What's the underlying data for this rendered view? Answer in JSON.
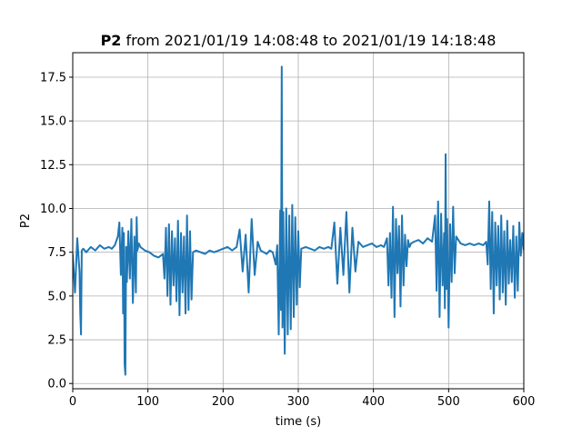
{
  "chart_data": {
    "type": "line",
    "title_bold": "P2",
    "title_rest": " from 2021/01/19 14:08:48 to 2021/01/19 14:18:48",
    "xlabel": "time (s)",
    "ylabel": "P2",
    "xlim": [
      0,
      600
    ],
    "ylim": [
      -0.3,
      18.9
    ],
    "grid": true,
    "x_ticks": [
      0,
      100,
      200,
      300,
      400,
      500,
      600
    ],
    "y_ticks": [
      0.0,
      2.5,
      5.0,
      7.5,
      10.0,
      12.5,
      15.0,
      17.5
    ],
    "x_tick_labels": [
      "0",
      "100",
      "200",
      "300",
      "400",
      "500",
      "600"
    ],
    "y_tick_labels": [
      "0.0",
      "2.5",
      "5.0",
      "7.5",
      "10.0",
      "12.5",
      "15.0",
      "17.5"
    ],
    "color": "#1f77b4",
    "series": [
      {
        "x": [
          0,
          3,
          6,
          9,
          10,
          11,
          12,
          14,
          18,
          24,
          30,
          36,
          42,
          48,
          52,
          56,
          60,
          62,
          64,
          66,
          67,
          68,
          69,
          70,
          71,
          72,
          74,
          76,
          78,
          80,
          82,
          84,
          85,
          86,
          88,
          90,
          96,
          102,
          108,
          114,
          120,
          122,
          124,
          126,
          128,
          130,
          132,
          134,
          136,
          138,
          140,
          142,
          144,
          146,
          148,
          150,
          152,
          154,
          156,
          158,
          160,
          164,
          170,
          176,
          182,
          188,
          194,
          200,
          206,
          212,
          218,
          222,
          226,
          230,
          234,
          238,
          242,
          246,
          250,
          254,
          258,
          262,
          266,
          270,
          272,
          274,
          276,
          277,
          278,
          279,
          280,
          282,
          284,
          286,
          288,
          290,
          292,
          294,
          296,
          298,
          300,
          302,
          304,
          310,
          316,
          322,
          328,
          334,
          340,
          344,
          348,
          352,
          356,
          360,
          364,
          368,
          372,
          376,
          380,
          386,
          392,
          398,
          404,
          410,
          414,
          418,
          420,
          422,
          424,
          426,
          428,
          430,
          432,
          434,
          436,
          438,
          440,
          442,
          444,
          446,
          448,
          450,
          454,
          460,
          466,
          472,
          478,
          482,
          484,
          486,
          488,
          490,
          492,
          494,
          495,
          496,
          497,
          498,
          500,
          502,
          504,
          506,
          508,
          510,
          516,
          522,
          528,
          534,
          540,
          546,
          550,
          552,
          554,
          556,
          558,
          560,
          562,
          564,
          566,
          568,
          570,
          572,
          574,
          576,
          578,
          580,
          582,
          584,
          586,
          588,
          590,
          592,
          594,
          596,
          598,
          600
        ],
        "y": [
          7.4,
          5.2,
          8.3,
          6.4,
          4.0,
          2.8,
          7.6,
          7.7,
          7.5,
          7.8,
          7.6,
          7.9,
          7.7,
          7.8,
          7.7,
          7.9,
          8.4,
          9.2,
          6.2,
          8.9,
          4.0,
          8.6,
          1.1,
          0.5,
          7.8,
          5.8,
          8.7,
          6.0,
          9.4,
          4.6,
          8.4,
          5.2,
          9.5,
          7.6,
          8.0,
          7.8,
          7.6,
          7.5,
          7.3,
          7.2,
          7.4,
          6.0,
          8.9,
          5.0,
          9.1,
          4.5,
          8.7,
          5.6,
          8.3,
          4.7,
          9.3,
          3.9,
          8.6,
          5.2,
          8.4,
          4.0,
          9.6,
          4.2,
          8.7,
          4.8,
          7.5,
          7.6,
          7.5,
          7.4,
          7.6,
          7.5,
          7.6,
          7.7,
          7.8,
          7.6,
          7.8,
          8.8,
          6.4,
          8.5,
          5.2,
          9.4,
          6.2,
          8.1,
          7.6,
          7.5,
          7.4,
          7.6,
          7.5,
          6.8,
          7.9,
          2.8,
          9.9,
          4.2,
          18.1,
          3.2,
          9.8,
          1.7,
          10.0,
          2.8,
          9.6,
          3.1,
          10.2,
          3.8,
          9.5,
          4.5,
          8.7,
          5.5,
          7.7,
          7.8,
          7.7,
          7.6,
          7.8,
          7.7,
          7.8,
          7.7,
          9.2,
          5.7,
          8.9,
          6.2,
          9.8,
          5.2,
          8.9,
          6.4,
          8.1,
          7.8,
          7.9,
          8.0,
          7.8,
          7.9,
          7.8,
          8.3,
          5.6,
          8.6,
          4.9,
          10.1,
          3.8,
          9.4,
          6.3,
          9.0,
          4.4,
          9.6,
          5.6,
          8.5,
          6.7,
          8.2,
          7.8,
          8.0,
          8.1,
          8.2,
          8.0,
          8.3,
          8.1,
          9.6,
          5.3,
          10.4,
          3.8,
          9.7,
          5.6,
          8.6,
          4.3,
          13.1,
          5.4,
          9.4,
          3.2,
          9.1,
          5.8,
          10.1,
          6.3,
          8.4,
          8.0,
          7.9,
          8.0,
          7.9,
          8.0,
          7.9,
          8.1,
          6.8,
          10.4,
          5.4,
          9.8,
          4.0,
          9.2,
          5.6,
          9.0,
          4.8,
          9.6,
          5.2,
          8.7,
          4.5,
          9.3,
          5.7,
          8.2,
          5.8,
          9.0,
          4.9,
          8.4,
          5.3,
          9.2,
          7.3,
          8.6,
          7.6
        ]
      }
    ]
  }
}
